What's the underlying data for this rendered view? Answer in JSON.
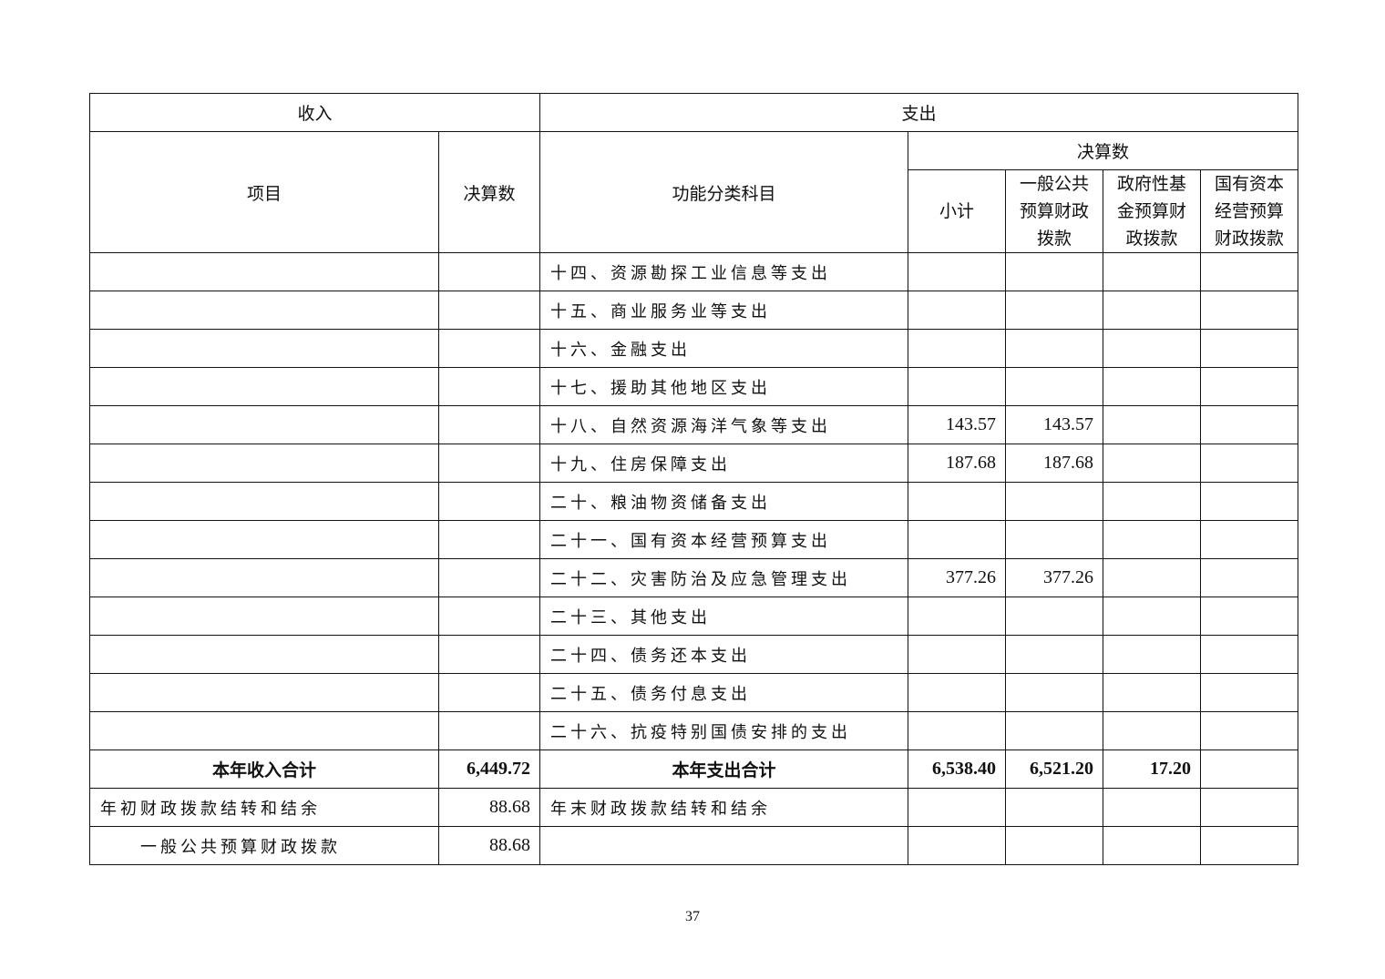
{
  "header": {
    "income": "收入",
    "expense": "支出",
    "item": "项目",
    "final_amount": "决算数",
    "function_category": "功能分类科目",
    "final_amount_group": "决算数",
    "subtotal": "小计",
    "general_public": "一般公共预算财政拨款",
    "gov_fund": "政府性基金预算财政拨款",
    "state_capital": "国有资本经营预算财政拨款"
  },
  "rows": [
    {
      "income_item": "",
      "income_amount": "",
      "category": "十四、资源勘探工业信息等支出",
      "subtotal": "",
      "general": "",
      "fund": "",
      "capital": ""
    },
    {
      "income_item": "",
      "income_amount": "",
      "category": "十五、商业服务业等支出",
      "subtotal": "",
      "general": "",
      "fund": "",
      "capital": ""
    },
    {
      "income_item": "",
      "income_amount": "",
      "category": "十六、金融支出",
      "subtotal": "",
      "general": "",
      "fund": "",
      "capital": ""
    },
    {
      "income_item": "",
      "income_amount": "",
      "category": "十七、援助其他地区支出",
      "subtotal": "",
      "general": "",
      "fund": "",
      "capital": ""
    },
    {
      "income_item": "",
      "income_amount": "",
      "category": "十八、自然资源海洋气象等支出",
      "subtotal": "143.57",
      "general": "143.57",
      "fund": "",
      "capital": ""
    },
    {
      "income_item": "",
      "income_amount": "",
      "category": "十九、住房保障支出",
      "subtotal": "187.68",
      "general": "187.68",
      "fund": "",
      "capital": ""
    },
    {
      "income_item": "",
      "income_amount": "",
      "category": "二十、粮油物资储备支出",
      "subtotal": "",
      "general": "",
      "fund": "",
      "capital": ""
    },
    {
      "income_item": "",
      "income_amount": "",
      "category": "二十一、国有资本经营预算支出",
      "subtotal": "",
      "general": "",
      "fund": "",
      "capital": ""
    },
    {
      "income_item": "",
      "income_amount": "",
      "category": "二十二、灾害防治及应急管理支出",
      "subtotal": "377.26",
      "general": "377.26",
      "fund": "",
      "capital": ""
    },
    {
      "income_item": "",
      "income_amount": "",
      "category": "二十三、其他支出",
      "subtotal": "",
      "general": "",
      "fund": "",
      "capital": ""
    },
    {
      "income_item": "",
      "income_amount": "",
      "category": "二十四、债务还本支出",
      "subtotal": "",
      "general": "",
      "fund": "",
      "capital": ""
    },
    {
      "income_item": "",
      "income_amount": "",
      "category": "二十五、债务付息支出",
      "subtotal": "",
      "general": "",
      "fund": "",
      "capital": ""
    },
    {
      "income_item": "",
      "income_amount": "",
      "category": "二十六、抗疫特别国债安排的支出",
      "subtotal": "",
      "general": "",
      "fund": "",
      "capital": ""
    }
  ],
  "totals": {
    "income_label": "本年收入合计",
    "income_amount": "6,449.72",
    "expense_label": "本年支出合计",
    "subtotal": "6,538.40",
    "general": "6,521.20",
    "fund": "17.20",
    "capital": ""
  },
  "carryover": [
    {
      "income_item": "年初财政拨款结转和结余",
      "income_amount": "88.68",
      "category": "年末财政拨款结转和结余",
      "subtotal": "",
      "general": "",
      "fund": "",
      "capital": ""
    },
    {
      "income_item": "一般公共预算财政拨款",
      "income_amount": "88.68",
      "category": "",
      "subtotal": "",
      "general": "",
      "fund": "",
      "capital": ""
    }
  ],
  "page_number": "37"
}
